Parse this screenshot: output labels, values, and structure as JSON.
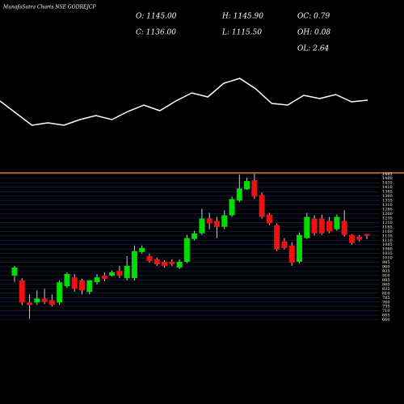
{
  "chart_data": {
    "type": "candlestick",
    "title": "MunafaSutra Charts NSE GODREJCP",
    "stats": [
      "O: 1145.00",
      "H: 1145.90",
      "OC: 0.79",
      "C: 1136.00",
      "L: 1115.50",
      "OH: 0.08",
      "OL: 2.64"
    ],
    "indicator": {
      "color": "#ffffff",
      "values": [
        35,
        20,
        5,
        8,
        5,
        12,
        17,
        12,
        22,
        30,
        23,
        35,
        45,
        40,
        57,
        63,
        50,
        32,
        30,
        42,
        38,
        43,
        34,
        36
      ]
    },
    "up_color": "#00dd00",
    "down_color": "#ee1111",
    "grid": true,
    "ylim": [
      640,
      1500
    ],
    "yticks": [
      660,
      685,
      710,
      735,
      760,
      785,
      810,
      835,
      860,
      885,
      910,
      935,
      960,
      985,
      1010,
      1035,
      1060,
      1085,
      1110,
      1135,
      1160,
      1185,
      1210,
      1235,
      1260,
      1285,
      1310,
      1335,
      1360,
      1385,
      1410,
      1435,
      1460,
      1485
    ],
    "open": [
      909,
      882,
      757,
      757,
      780,
      771,
      757,
      849,
      900,
      882,
      817,
      872,
      909,
      909,
      937,
      895,
      895,
      1043,
      1020,
      1002,
      988,
      988,
      955,
      988,
      1117,
      1149,
      1232,
      1219,
      1186,
      1251,
      1334,
      1398,
      1449,
      1366,
      1255,
      1195,
      1103,
      1080,
      988,
      1122,
      1232,
      1232,
      1219,
      1172,
      1219,
      1140,
      1131,
      1145
    ],
    "high": [
      965,
      895,
      803,
      826,
      835,
      803,
      882,
      928,
      919,
      891,
      884,
      919,
      928,
      937,
      965,
      1020,
      1080,
      1080,
      1034,
      1011,
      997,
      1002,
      1002,
      1140,
      1163,
      1288,
      1265,
      1242,
      1279,
      1357,
      1482,
      1463,
      1485,
      1380,
      1265,
      1205,
      1122,
      1099,
      1154,
      1265,
      1251,
      1255,
      1242,
      1255,
      1279,
      1145,
      1140,
      1145.9
    ],
    "low": [
      872,
      743,
      665,
      743,
      748,
      734,
      743,
      840,
      817,
      803,
      803,
      859,
      877,
      905,
      895,
      882,
      882,
      1034,
      983,
      965,
      955,
      965,
      946,
      979,
      1108,
      1140,
      1172,
      1122,
      1172,
      1242,
      1325,
      1394,
      1343,
      1232,
      1195,
      1048,
      1057,
      965,
      979,
      1117,
      1136,
      1140,
      1149,
      1163,
      1131,
      1085,
      1103,
      1115.5
    ],
    "close": [
      955,
      757,
      743,
      780,
      761,
      743,
      872,
      919,
      835,
      826,
      882,
      900,
      891,
      928,
      909,
      965,
      1048,
      1066,
      992,
      974,
      965,
      974,
      988,
      1122,
      1149,
      1232,
      1205,
      1186,
      1251,
      1343,
      1403,
      1445,
      1357,
      1242,
      1205,
      1057,
      1066,
      983,
      1140,
      1242,
      1149,
      1149,
      1159,
      1242,
      1140,
      1094,
      1113,
      1136
    ]
  }
}
